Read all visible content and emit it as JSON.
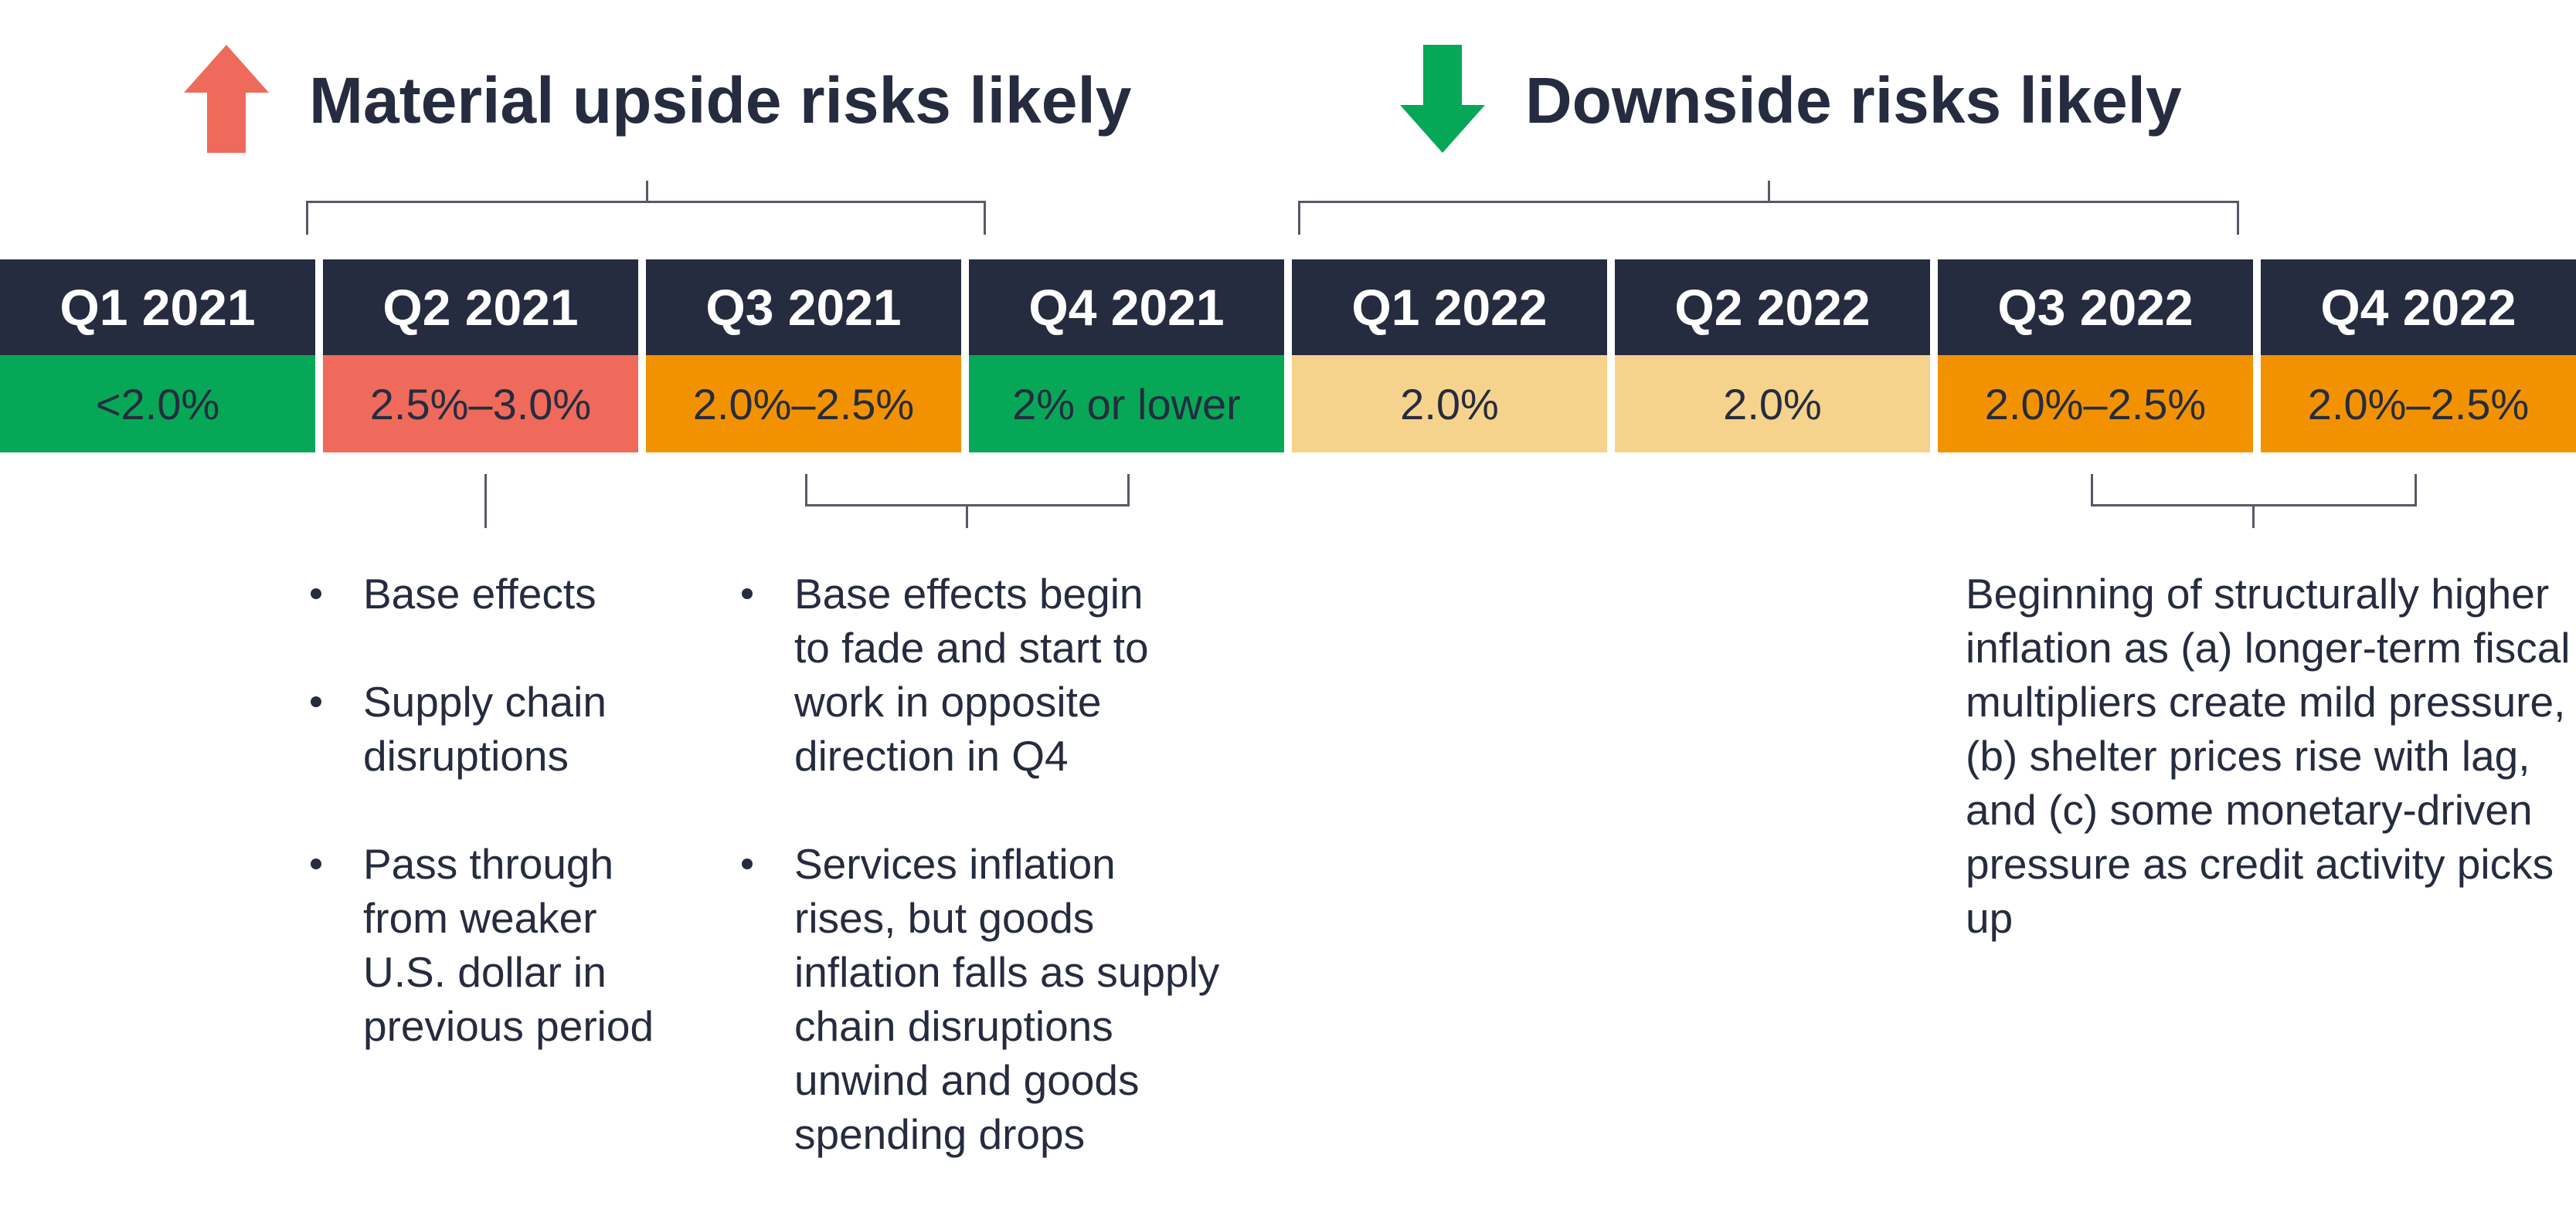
{
  "header": {
    "upside": {
      "title": "Material upside risks likely",
      "icon": "arrow-up-icon",
      "color": "#ef6a5a"
    },
    "downside": {
      "title": "Downside risks likely",
      "icon": "arrow-down-icon",
      "color": "#06a857"
    }
  },
  "timeline": [
    {
      "quarter": "Q1 2021",
      "value": "<2.0%",
      "color": "#06a857"
    },
    {
      "quarter": "Q2 2021",
      "value": "2.5%–3.0%",
      "color": "#ef6a5a"
    },
    {
      "quarter": "Q3 2021",
      "value": "2.0%–2.5%",
      "color": "#f39200"
    },
    {
      "quarter": "Q4 2021",
      "value": "2% or lower",
      "color": "#06a857"
    },
    {
      "quarter": "Q1 2022",
      "value": "2.0%",
      "color": "#f6d38c"
    },
    {
      "quarter": "Q2 2022",
      "value": "2.0%",
      "color": "#f6d38c"
    },
    {
      "quarter": "Q3 2022",
      "value": "2.0%–2.5%",
      "color": "#f39200"
    },
    {
      "quarter": "Q4 2022",
      "value": "2.0%–2.5%",
      "color": "#f39200"
    }
  ],
  "notes": {
    "q2_2021": [
      "Base effects",
      "Supply chain disruptions",
      "Pass through from weaker U.S. dollar in previous period"
    ],
    "q3_q4_2021": [
      "Base effects begin to fade and start to work in opposite direction in Q4",
      "Services inflation rises, but goods inflation falls as supply chain disruptions unwind and goods spending drops"
    ],
    "q3_q4_2022": "Beginning of structurally higher inflation as (a) longer-term fiscal multipliers create mild pressure, (b) shelter prices rise with lag, and (c) some monetary-driven pressure as credit activity picks up"
  }
}
